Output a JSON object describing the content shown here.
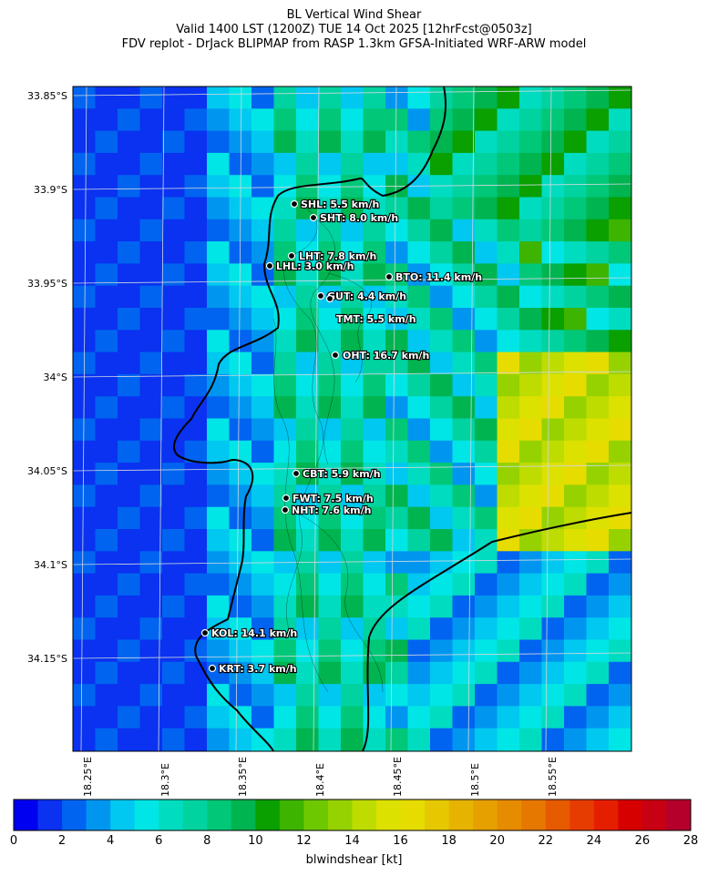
{
  "title": {
    "line1": "BL Vertical Wind Shear",
    "line2": "Valid 1400 LST (1200Z) TUE 14 Oct 2025 [12hrFcst@0503z]",
    "line3": "FDV replot - DrJack BLIPMAP from RASP 1.3km GFSA-Initiated WRF-ARW model"
  },
  "axes": {
    "y_ticks": [
      "33.85°S",
      "33.9°S",
      "33.95°S",
      "34°S",
      "34.05°S",
      "34.1°S",
      "34.15°S"
    ],
    "x_ticks": [
      "18.25°E",
      "18.3°E",
      "18.35°E",
      "18.4°E",
      "18.45°E",
      "18.5°E",
      "18.55°E"
    ]
  },
  "stations": [
    {
      "code": "SHL",
      "value": "5.5 km/h"
    },
    {
      "code": "SHT",
      "value": "8.0 km/h"
    },
    {
      "code": "LHT",
      "value": "7.8 km/h"
    },
    {
      "code": "LHL",
      "value": "3.0 km/h"
    },
    {
      "code": "BTO",
      "value": "11.4 km/h"
    },
    {
      "code": "GUT",
      "value": "4.4 km/h"
    },
    {
      "code": "TMT",
      "value": "5.5 km/h"
    },
    {
      "code": "OHT",
      "value": "16.7 km/h"
    },
    {
      "code": "CBT",
      "value": "5.9 km/h"
    },
    {
      "code": "FWT",
      "value": "7.5 km/h"
    },
    {
      "code": "NHT",
      "value": "7.6 km/h"
    },
    {
      "code": "KOL",
      "value": "14.1 km/h"
    },
    {
      "code": "KRT",
      "value": "3.7 km/h"
    }
  ],
  "colorbar": {
    "ticks": [
      "0",
      "2",
      "4",
      "6",
      "8",
      "10",
      "12",
      "14",
      "16",
      "18",
      "20",
      "22",
      "24",
      "26",
      "28"
    ],
    "label": "blwindshear [kt]",
    "colors": [
      "#0000f0",
      "#0a32f0",
      "#0064f0",
      "#0096f0",
      "#00c8f0",
      "#00e6e6",
      "#00dcc0",
      "#00d2a0",
      "#00c878",
      "#00b450",
      "#0aa000",
      "#3cb400",
      "#6ec800",
      "#96d200",
      "#bedc00",
      "#dce100",
      "#e6dc00",
      "#e6c800",
      "#e6b400",
      "#e6a000",
      "#e68c00",
      "#e67800",
      "#e65a00",
      "#e63c00",
      "#e61e00",
      "#d70000",
      "#c80014",
      "#b4002a"
    ]
  }
}
